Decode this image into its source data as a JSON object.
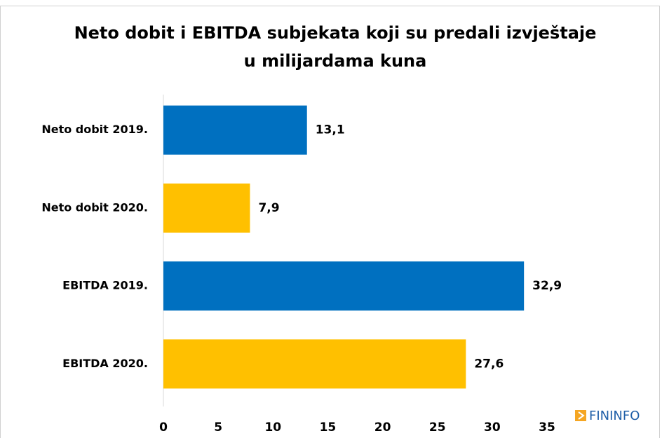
{
  "chart_data": {
    "type": "bar",
    "orientation": "horizontal",
    "title": [
      "Neto dobit i EBITDA subjekata koji su predali izvještaje",
      "u milijardama kuna"
    ],
    "categories": [
      "Neto dobit 2019.",
      "Neto dobit 2020.",
      "EBITDA 2019.",
      "EBITDA 2020."
    ],
    "values": [
      13.1,
      7.9,
      32.9,
      27.6
    ],
    "value_labels": [
      "13,1",
      "7,9",
      "32,9",
      "27,6"
    ],
    "colors": [
      "#0070c0",
      "#ffc000",
      "#0070c0",
      "#ffc000"
    ],
    "xlim": [
      0,
      35
    ],
    "xticks": [
      0,
      5,
      10,
      15,
      20,
      25,
      30,
      35
    ],
    "grid": false,
    "logo": "FININFO"
  }
}
